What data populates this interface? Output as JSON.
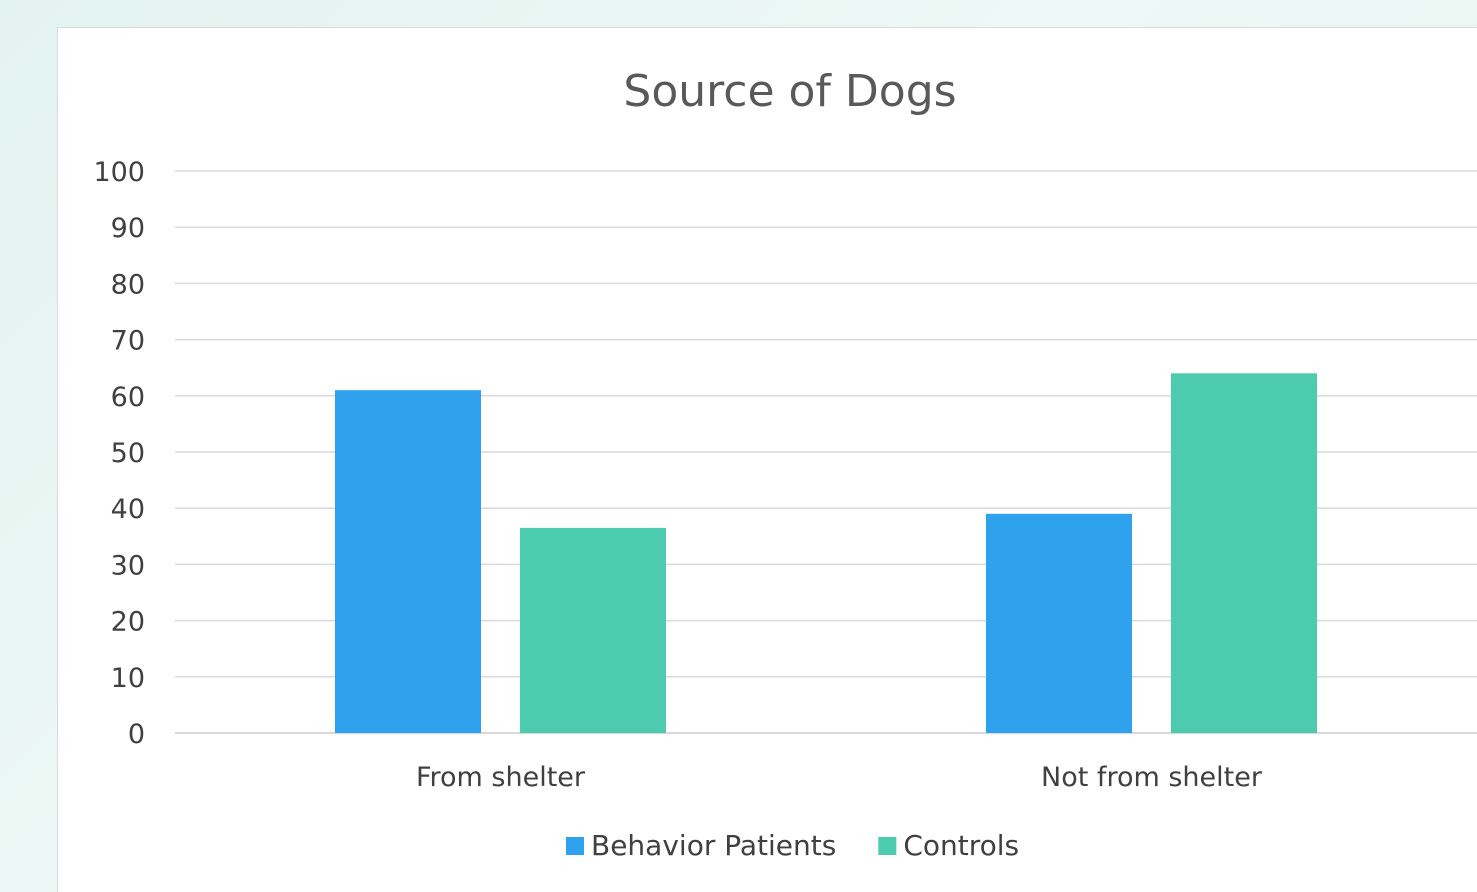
{
  "chart_data": {
    "type": "bar",
    "title": "Source of Dogs",
    "xlabel": "",
    "ylabel": "",
    "categories": [
      "From shelter",
      "Not from shelter"
    ],
    "series": [
      {
        "name": "Behavior Patients",
        "values": [
          61,
          39
        ],
        "color": "#2ea2ec"
      },
      {
        "name": "Controls",
        "values": [
          36.5,
          64
        ],
        "color": "#4ccbae"
      }
    ],
    "ylim": [
      0,
      100
    ],
    "yticks": [
      "0",
      "10",
      "20",
      "30",
      "40",
      "50",
      "60",
      "70",
      "80",
      "90",
      "100"
    ],
    "grid": true,
    "legend_position": "bottom"
  }
}
